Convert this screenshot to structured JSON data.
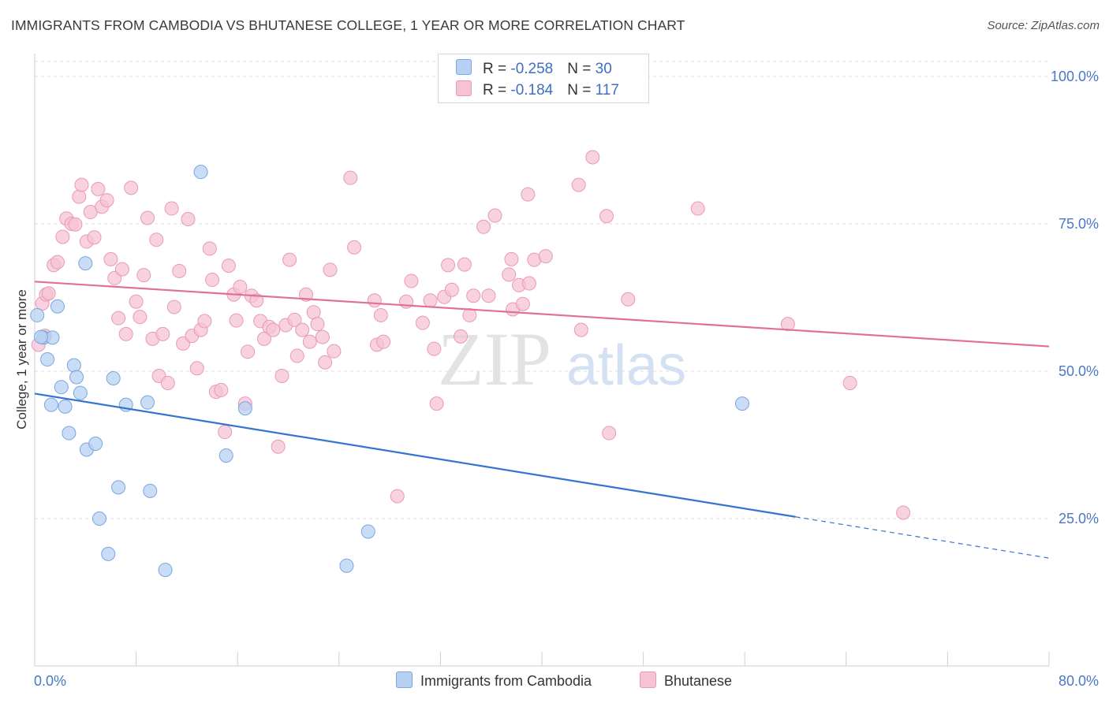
{
  "title": "IMMIGRANTS FROM CAMBODIA VS BHUTANESE COLLEGE, 1 YEAR OR MORE CORRELATION CHART",
  "source": "Source: ZipAtlas.com",
  "watermark": {
    "zip": "ZIP",
    "atlas": "atlas"
  },
  "legend": {
    "rows": [
      {
        "r_label": "R = ",
        "r_value": "-0.258",
        "n_label": "N = ",
        "n_value": "30",
        "color": "#b8d1f3"
      },
      {
        "r_label": "R = ",
        "r_value": "-0.184",
        "n_label": "N = ",
        "n_value": "117",
        "color": "#f6c3d3"
      }
    ]
  },
  "bottom_legend": [
    {
      "label": "Immigrants from Cambodia",
      "color": "#b8d1f3"
    },
    {
      "label": "Bhutanese",
      "color": "#f6c3d3"
    }
  ],
  "colors": {
    "blue_fill": "#b8d1f3",
    "blue_stroke": "#7aa6e0",
    "blue_line": "#3474d0",
    "pink_fill": "#f6c3d3",
    "pink_stroke": "#e99ab4",
    "pink_line": "#e0709a",
    "tick_text": "#4a78c6",
    "grid": "#dcdcdc"
  },
  "chart_data": {
    "type": "scatter",
    "ylabel": "College, 1 year or more",
    "xlim": [
      0,
      80
    ],
    "ylim": [
      0,
      100
    ],
    "x_tick_labels": [
      {
        "v": 0,
        "label": "0.0%"
      },
      {
        "v": 80,
        "label": "80.0%"
      }
    ],
    "y_tick_labels": [
      {
        "v": 25,
        "label": "25.0%"
      },
      {
        "v": 50,
        "label": "50.0%"
      },
      {
        "v": 75,
        "label": "75.0%"
      },
      {
        "v": 100,
        "label": "100.0%"
      }
    ],
    "grid": true,
    "legend_position": "top-center",
    "series": [
      {
        "name": "Immigrants from Cambodia",
        "color": "#b8d1f3",
        "points": [
          [
            0.2,
            59.5
          ],
          [
            0.7,
            55.7
          ],
          [
            1.0,
            52.0
          ],
          [
            1.3,
            44.3
          ],
          [
            1.4,
            55.7
          ],
          [
            1.8,
            61.0
          ],
          [
            2.1,
            47.3
          ],
          [
            2.4,
            44.0
          ],
          [
            2.7,
            39.5
          ],
          [
            3.1,
            51.0
          ],
          [
            3.3,
            49.0
          ],
          [
            3.6,
            46.3
          ],
          [
            4.0,
            68.3
          ],
          [
            4.1,
            36.7
          ],
          [
            4.8,
            37.7
          ],
          [
            5.1,
            25.0
          ],
          [
            5.8,
            19.0
          ],
          [
            6.2,
            48.8
          ],
          [
            6.6,
            30.3
          ],
          [
            7.2,
            44.3
          ],
          [
            8.9,
            44.7
          ],
          [
            9.1,
            29.7
          ],
          [
            10.3,
            16.3
          ],
          [
            13.1,
            83.8
          ],
          [
            15.1,
            35.7
          ],
          [
            16.6,
            43.7
          ],
          [
            24.6,
            17.0
          ],
          [
            26.3,
            22.8
          ],
          [
            55.8,
            44.5
          ],
          [
            0.5,
            55.8
          ]
        ],
        "trend": {
          "x0": 0,
          "y0": 46.2,
          "x1": 60,
          "y1": 25.3,
          "dash_to_x": 80,
          "dash_to_y": 18.3
        }
      },
      {
        "name": "Bhutanese",
        "color": "#f6c3d3",
        "points": [
          [
            0.3,
            54.5
          ],
          [
            0.6,
            61.5
          ],
          [
            0.9,
            63.0
          ],
          [
            1.1,
            63.2
          ],
          [
            1.5,
            68.0
          ],
          [
            1.8,
            68.5
          ],
          [
            2.2,
            72.8
          ],
          [
            2.5,
            75.9
          ],
          [
            2.9,
            75.0
          ],
          [
            3.2,
            74.9
          ],
          [
            3.5,
            79.6
          ],
          [
            3.7,
            81.6
          ],
          [
            4.1,
            72.0
          ],
          [
            4.4,
            77.0
          ],
          [
            4.7,
            72.7
          ],
          [
            5.0,
            80.9
          ],
          [
            5.3,
            77.9
          ],
          [
            5.7,
            79.0
          ],
          [
            6.0,
            69.0
          ],
          [
            6.3,
            65.8
          ],
          [
            6.6,
            59.0
          ],
          [
            6.9,
            67.3
          ],
          [
            7.2,
            56.3
          ],
          [
            7.6,
            81.1
          ],
          [
            8.0,
            61.8
          ],
          [
            8.3,
            59.2
          ],
          [
            8.6,
            66.3
          ],
          [
            8.9,
            76.0
          ],
          [
            9.3,
            55.5
          ],
          [
            9.6,
            72.3
          ],
          [
            9.8,
            49.2
          ],
          [
            10.1,
            56.3
          ],
          [
            10.5,
            48.0
          ],
          [
            10.8,
            77.6
          ],
          [
            11.0,
            60.9
          ],
          [
            11.4,
            67.0
          ],
          [
            11.7,
            54.7
          ],
          [
            12.1,
            75.8
          ],
          [
            12.4,
            56.0
          ],
          [
            12.8,
            50.5
          ],
          [
            13.1,
            57.0
          ],
          [
            13.4,
            58.5
          ],
          [
            13.8,
            70.8
          ],
          [
            14.0,
            65.5
          ],
          [
            14.3,
            46.5
          ],
          [
            14.7,
            46.8
          ],
          [
            15.0,
            39.7
          ],
          [
            15.3,
            67.9
          ],
          [
            15.7,
            63.0
          ],
          [
            15.9,
            58.6
          ],
          [
            16.2,
            64.3
          ],
          [
            16.6,
            44.5
          ],
          [
            16.8,
            53.3
          ],
          [
            17.1,
            62.8
          ],
          [
            17.5,
            62.0
          ],
          [
            17.8,
            58.5
          ],
          [
            18.1,
            55.5
          ],
          [
            18.5,
            57.5
          ],
          [
            18.8,
            57.0
          ],
          [
            19.2,
            37.2
          ],
          [
            19.5,
            49.2
          ],
          [
            19.8,
            57.8
          ],
          [
            20.1,
            68.9
          ],
          [
            20.5,
            58.7
          ],
          [
            20.7,
            52.6
          ],
          [
            21.1,
            57.0
          ],
          [
            21.4,
            63.0
          ],
          [
            21.7,
            55.0
          ],
          [
            22.0,
            60.0
          ],
          [
            22.3,
            58.0
          ],
          [
            22.7,
            55.8
          ],
          [
            22.9,
            51.5
          ],
          [
            23.3,
            67.2
          ],
          [
            23.6,
            53.4
          ],
          [
            24.9,
            82.8
          ],
          [
            25.2,
            71.0
          ],
          [
            26.8,
            62.0
          ],
          [
            27.0,
            54.5
          ],
          [
            27.3,
            59.5
          ],
          [
            27.5,
            55.0
          ],
          [
            28.6,
            28.8
          ],
          [
            29.3,
            61.8
          ],
          [
            29.7,
            65.3
          ],
          [
            30.6,
            58.2
          ],
          [
            31.2,
            62.0
          ],
          [
            31.5,
            53.8
          ],
          [
            31.7,
            44.5
          ],
          [
            32.3,
            62.6
          ],
          [
            32.6,
            68.0
          ],
          [
            32.9,
            63.8
          ],
          [
            33.6,
            55.9
          ],
          [
            33.9,
            68.1
          ],
          [
            34.3,
            59.5
          ],
          [
            34.6,
            62.8
          ],
          [
            35.4,
            74.5
          ],
          [
            35.8,
            62.8
          ],
          [
            36.3,
            76.4
          ],
          [
            37.4,
            66.4
          ],
          [
            37.6,
            69.0
          ],
          [
            37.7,
            60.5
          ],
          [
            38.2,
            64.6
          ],
          [
            38.5,
            61.4
          ],
          [
            38.9,
            80.0
          ],
          [
            39.0,
            64.9
          ],
          [
            39.4,
            68.9
          ],
          [
            40.3,
            69.5
          ],
          [
            42.9,
            81.6
          ],
          [
            43.1,
            57.0
          ],
          [
            44.0,
            86.3
          ],
          [
            45.1,
            76.3
          ],
          [
            45.3,
            39.5
          ],
          [
            46.8,
            62.2
          ],
          [
            52.3,
            77.6
          ],
          [
            59.4,
            58.0
          ],
          [
            64.3,
            48.0
          ],
          [
            68.5,
            26.0
          ],
          [
            0.8,
            56.0
          ]
        ],
        "trend": {
          "x0": 0,
          "y0": 65.2,
          "x1": 80,
          "y1": 54.2
        }
      }
    ]
  }
}
